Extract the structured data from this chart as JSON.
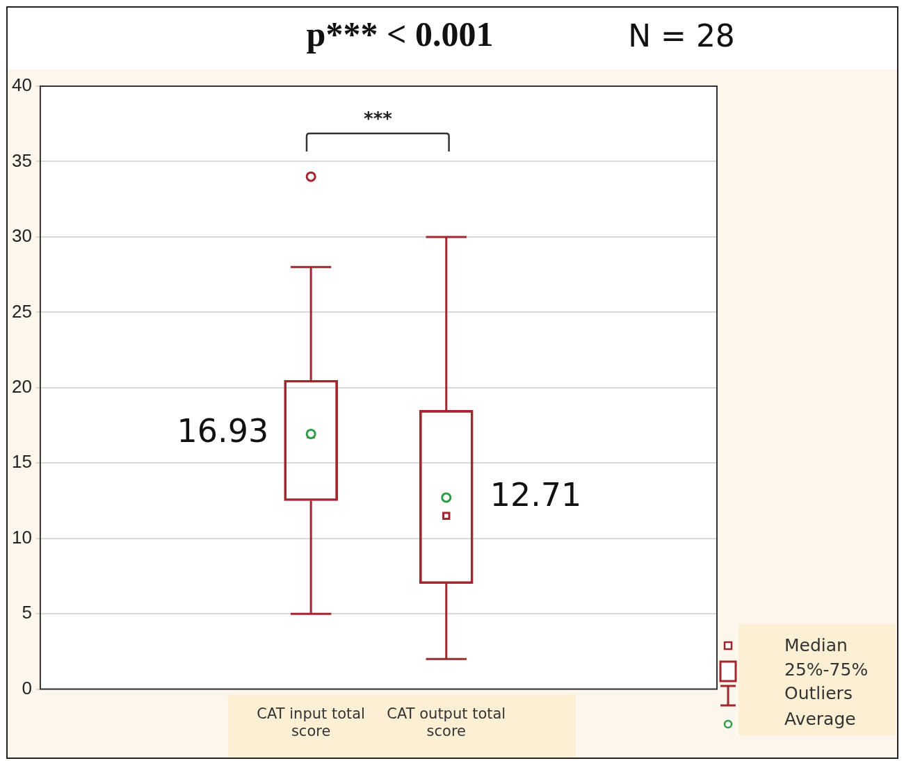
{
  "chart_data": {
    "type": "box",
    "title": "p*** < 0.001",
    "subtitle": "N = 28",
    "categories": [
      "CAT input total score",
      "CAT output total score"
    ],
    "ylim": [
      0,
      40
    ],
    "yticks": [
      0,
      5,
      10,
      15,
      20,
      25,
      30,
      35,
      40
    ],
    "grid": "y",
    "annotations": [
      "***",
      "16.93",
      "12.71",
      "Median",
      "25%-75%",
      "Outliers",
      "Average"
    ],
    "series": [
      {
        "color": "#a3262e",
        "boxes": [
          {
            "low": 5,
            "q1": 12.5,
            "median": 16.9,
            "q3": 20.5,
            "high": 28,
            "mean": 16.93,
            "outliers": [
              34
            ]
          },
          {
            "low": 2,
            "q1": 7,
            "median": 11.5,
            "q3": 18.5,
            "high": 30,
            "mean": 12.71
          }
        ]
      }
    ]
  }
}
